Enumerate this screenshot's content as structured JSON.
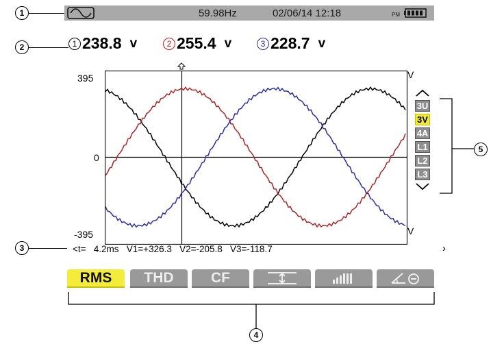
{
  "status_bar": {
    "frequency": "59.98Hz",
    "datetime": "02/06/14 12:18",
    "ampm": "PM",
    "mode_icon": "waveform-icon",
    "battery_icon": "battery-icon"
  },
  "voltages": [
    {
      "index": "1",
      "value": "238.8",
      "unit": "v",
      "color": "#000000"
    },
    {
      "index": "2",
      "value": "255.4",
      "unit": "v",
      "color": "#b02020"
    },
    {
      "index": "3",
      "value": "228.7",
      "unit": "v",
      "color": "#2a2a9a"
    }
  ],
  "scope": {
    "y_max_label": "395",
    "y_zero_label": "0",
    "y_min_label": "-395",
    "unit_top": "V",
    "unit_bottom": "V",
    "cursor_marker_icon": "cursor-marker-icon"
  },
  "side_menu": {
    "up_icon": "chevron-up-icon",
    "down_icon": "chevron-down-icon",
    "items": [
      {
        "label": "3U",
        "active": false
      },
      {
        "label": "3V",
        "active": true
      },
      {
        "label": "4A",
        "active": false
      },
      {
        "label": "L1",
        "active": false
      },
      {
        "label": "L2",
        "active": false
      },
      {
        "label": "L3",
        "active": false
      }
    ]
  },
  "readout": {
    "text": "<t=   4.2ms   V1=+326.3   V2=-205.8   V3=-118.7",
    "right_arrow": "›"
  },
  "tabs": [
    {
      "label": "RMS",
      "active": true
    },
    {
      "label": "THD",
      "active": false
    },
    {
      "label": "CF",
      "active": false
    },
    {
      "label": "",
      "icon": "peak-range-icon",
      "active": false
    },
    {
      "label": "",
      "icon": "bars-icon",
      "active": false
    },
    {
      "label": "",
      "icon": "phasor-icon",
      "active": false
    }
  ],
  "callouts": [
    "1",
    "2",
    "3",
    "4",
    "5"
  ],
  "colors": {
    "phase1": "#000000",
    "phase2": "#b02020",
    "phase3": "#2a2a9a",
    "active_yellow": "#f3ec3c",
    "button_gray": "#999999"
  }
}
